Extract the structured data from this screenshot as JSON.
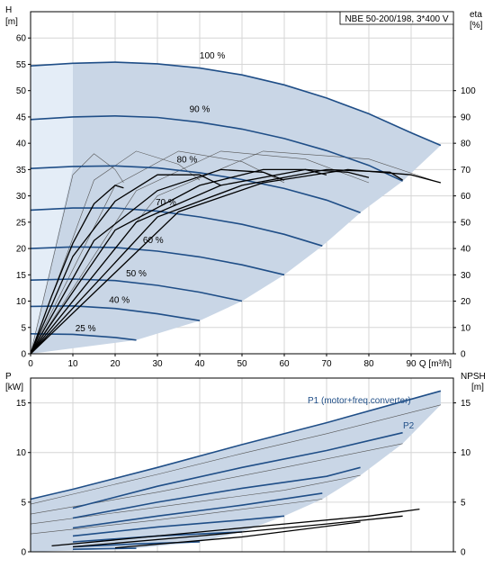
{
  "chart_data": [
    {
      "type": "line",
      "title": "NBE 50-200/198, 3*400 V",
      "y_left_label": [
        "H",
        "[m]"
      ],
      "y_right_label": [
        "eta",
        "[%]"
      ],
      "x_label": "Q [m³/h]",
      "xlim": [
        0,
        100
      ],
      "ylim_left": [
        0,
        65
      ],
      "ylim_right": [
        0,
        130
      ],
      "x_ticks": [
        0,
        10,
        20,
        30,
        40,
        50,
        60,
        70,
        80,
        90
      ],
      "y_left_ticks": [
        0,
        5,
        10,
        15,
        20,
        25,
        30,
        35,
        40,
        45,
        50,
        55,
        60
      ],
      "y_right_ticks": [
        0,
        10,
        20,
        30,
        40,
        50,
        60,
        70,
        80,
        90,
        100
      ],
      "grid": true,
      "colors": {
        "curve": "#1f4e87",
        "envelope": "#c9d6e6",
        "envelope_light": "#e4edf7",
        "efficiency": "#000000",
        "grid": "#d6d6d6"
      },
      "head_curves": [
        {
          "label": "25 %",
          "points": [
            [
              0,
              3.8
            ],
            [
              10,
              3.7
            ],
            [
              20,
              3.1
            ],
            [
              25,
              2.6
            ]
          ]
        },
        {
          "label": "40 %",
          "points": [
            [
              0,
              9
            ],
            [
              10,
              9.1
            ],
            [
              20,
              8.6
            ],
            [
              30,
              7.6
            ],
            [
              40,
              6.3
            ]
          ]
        },
        {
          "label": "50 %",
          "points": [
            [
              0,
              14
            ],
            [
              10,
              14.2
            ],
            [
              20,
              13.9
            ],
            [
              30,
              13.0
            ],
            [
              40,
              11.7
            ],
            [
              50,
              10.0
            ]
          ]
        },
        {
          "label": "60 %",
          "points": [
            [
              0,
              20
            ],
            [
              10,
              20.3
            ],
            [
              20,
              20.2
            ],
            [
              30,
              19.5
            ],
            [
              40,
              18.4
            ],
            [
              50,
              16.9
            ],
            [
              60,
              15.0
            ]
          ]
        },
        {
          "label": "70 %",
          "points": [
            [
              0,
              27.3
            ],
            [
              10,
              27.7
            ],
            [
              20,
              27.7
            ],
            [
              30,
              27.1
            ],
            [
              40,
              26.0
            ],
            [
              50,
              24.6
            ],
            [
              60,
              22.7
            ],
            [
              69,
              20.5
            ]
          ]
        },
        {
          "label": "80 %",
          "points": [
            [
              0,
              35.2
            ],
            [
              10,
              35.6
            ],
            [
              20,
              35.7
            ],
            [
              30,
              35.3
            ],
            [
              40,
              34.4
            ],
            [
              50,
              33.1
            ],
            [
              60,
              31.4
            ],
            [
              70,
              29.2
            ],
            [
              78,
              26.8
            ]
          ]
        },
        {
          "label": "90 %",
          "points": [
            [
              0,
              44.5
            ],
            [
              10,
              45.0
            ],
            [
              20,
              45.2
            ],
            [
              30,
              44.9
            ],
            [
              40,
              44.0
            ],
            [
              50,
              42.7
            ],
            [
              60,
              40.9
            ],
            [
              70,
              38.6
            ],
            [
              80,
              35.8
            ],
            [
              88,
              32.8
            ]
          ]
        },
        {
          "label": "100 %",
          "points": [
            [
              0,
              54.7
            ],
            [
              10,
              55.2
            ],
            [
              20,
              55.4
            ],
            [
              30,
              55.1
            ],
            [
              40,
              54.3
            ],
            [
              50,
              53.0
            ],
            [
              60,
              51.1
            ],
            [
              70,
              48.6
            ],
            [
              80,
              45.6
            ],
            [
              90,
              42.0
            ],
            [
              97,
              39.6
            ]
          ]
        }
      ],
      "efficiency_curves": [
        {
          "points": [
            [
              0,
              0
            ],
            [
              5,
              22
            ],
            [
              10,
              42
            ],
            [
              15,
              57
            ],
            [
              20,
              64
            ],
            [
              22,
              63
            ]
          ]
        },
        {
          "points": [
            [
              0,
              0
            ],
            [
              10,
              37
            ],
            [
              20,
              58
            ],
            [
              30,
              68
            ],
            [
              40,
              68
            ],
            [
              45,
              64
            ]
          ]
        },
        {
          "points": [
            [
              0,
              0
            ],
            [
              15,
              43
            ],
            [
              30,
              62
            ],
            [
              45,
              70
            ],
            [
              55,
              69
            ],
            [
              60,
              66
            ]
          ]
        },
        {
          "points": [
            [
              0,
              0
            ],
            [
              20,
              47
            ],
            [
              40,
              64
            ],
            [
              55,
              70
            ],
            [
              65,
              70
            ],
            [
              70,
              68
            ]
          ]
        },
        {
          "points": [
            [
              0,
              0
            ],
            [
              25,
              50
            ],
            [
              45,
              64
            ],
            [
              65,
              70
            ],
            [
              75,
              69
            ],
            [
              80,
              67
            ]
          ]
        },
        {
          "points": [
            [
              0,
              0
            ],
            [
              30,
              52
            ],
            [
              50,
              64
            ],
            [
              70,
              70
            ],
            [
              85,
              69
            ],
            [
              88,
              66
            ]
          ]
        },
        {
          "points": [
            [
              0,
              0
            ],
            [
              35,
              54
            ],
            [
              55,
              65
            ],
            [
              75,
              70
            ],
            [
              90,
              68
            ],
            [
              97,
              65
            ]
          ]
        }
      ],
      "thin_curves": [
        {
          "points": [
            [
              0,
              0
            ],
            [
              10,
              68
            ],
            [
              15,
              76
            ],
            [
              20,
              70
            ],
            [
              22,
              65
            ]
          ]
        },
        {
          "points": [
            [
              0,
              0
            ],
            [
              15,
              66
            ],
            [
              25,
              77
            ],
            [
              35,
              72
            ],
            [
              40,
              66
            ]
          ]
        },
        {
          "points": [
            [
              0,
              0
            ],
            [
              20,
              64
            ],
            [
              35,
              77
            ],
            [
              50,
              73
            ],
            [
              60,
              65
            ]
          ]
        },
        {
          "points": [
            [
              0,
              0
            ],
            [
              25,
              62
            ],
            [
              45,
              77
            ],
            [
              65,
              74
            ],
            [
              80,
              65
            ]
          ]
        },
        {
          "points": [
            [
              0,
              0
            ],
            [
              30,
              60
            ],
            [
              55,
              77
            ],
            [
              80,
              74
            ],
            [
              95,
              66
            ]
          ]
        }
      ],
      "envelope_labels": [
        "100 %",
        "90 %",
        "80 %",
        "70 %",
        "60 %",
        "50 %",
        "40 %",
        "25 %"
      ]
    },
    {
      "type": "line",
      "y_left_label": [
        "P",
        "[kW]"
      ],
      "y_right_label": [
        "NPSH",
        "[m]"
      ],
      "xlim": [
        0,
        100
      ],
      "ylim_left": [
        0,
        17.5
      ],
      "ylim_right": [
        0,
        17.5
      ],
      "y_left_ticks": [
        0,
        5,
        10,
        15
      ],
      "y_right_ticks": [
        0,
        5,
        10,
        15
      ],
      "grid": true,
      "series_labels": {
        "p1": "P1 (motor+freq.converter)",
        "p2": "P2"
      },
      "p1_curves": [
        {
          "points": [
            [
              0,
              5.3
            ],
            [
              10,
              6.3
            ],
            [
              30,
              8.5
            ],
            [
              50,
              10.8
            ],
            [
              70,
              13.0
            ],
            [
              97,
              16.2
            ]
          ]
        },
        {
          "points": [
            [
              10,
              4.4
            ],
            [
              30,
              6.6
            ],
            [
              50,
              8.5
            ],
            [
              70,
              10.2
            ],
            [
              88,
              12.0
            ]
          ]
        },
        {
          "points": [
            [
              10,
              3.4
            ],
            [
              30,
              5.0
            ],
            [
              50,
              6.4
            ],
            [
              70,
              7.6
            ],
            [
              78,
              8.5
            ]
          ]
        },
        {
          "points": [
            [
              10,
              2.4
            ],
            [
              30,
              3.6
            ],
            [
              50,
              4.7
            ],
            [
              69,
              5.9
            ]
          ]
        },
        {
          "points": [
            [
              10,
              1.6
            ],
            [
              30,
              2.5
            ],
            [
              50,
              3.2
            ],
            [
              60,
              3.6
            ]
          ]
        },
        {
          "points": [
            [
              10,
              1.0
            ],
            [
              30,
              1.6
            ],
            [
              50,
              2.0
            ]
          ]
        },
        {
          "points": [
            [
              10,
              0.5
            ],
            [
              25,
              0.8
            ],
            [
              40,
              1.0
            ]
          ]
        },
        {
          "points": [
            [
              10,
              0.25
            ],
            [
              25,
              0.35
            ]
          ]
        }
      ],
      "p2_curves": [
        {
          "points": [
            [
              0,
              4.8
            ],
            [
              10,
              5.8
            ],
            [
              30,
              7.8
            ],
            [
              50,
              9.9
            ],
            [
              70,
              11.9
            ],
            [
              97,
              14.8
            ]
          ]
        },
        {
          "points": [
            [
              0,
              3.8
            ],
            [
              30,
              6.0
            ],
            [
              60,
              8.5
            ],
            [
              88,
              10.9
            ]
          ]
        },
        {
          "points": [
            [
              0,
              2.8
            ],
            [
              30,
              4.5
            ],
            [
              60,
              6.2
            ],
            [
              78,
              7.7
            ]
          ]
        },
        {
          "points": [
            [
              0,
              1.8
            ],
            [
              30,
              3.2
            ],
            [
              69,
              5.3
            ]
          ]
        }
      ],
      "npsh_curves": [
        {
          "points": [
            [
              5,
              0.6
            ],
            [
              30,
              1.6
            ],
            [
              60,
              2.8
            ],
            [
              80,
              3.6
            ],
            [
              92,
              4.3
            ]
          ]
        },
        {
          "points": [
            [
              10,
              0.5
            ],
            [
              40,
              1.6
            ],
            [
              70,
              2.8
            ],
            [
              88,
              3.6
            ]
          ]
        },
        {
          "points": [
            [
              20,
              0.4
            ],
            [
              50,
              1.5
            ],
            [
              78,
              3.0
            ]
          ]
        }
      ]
    }
  ]
}
